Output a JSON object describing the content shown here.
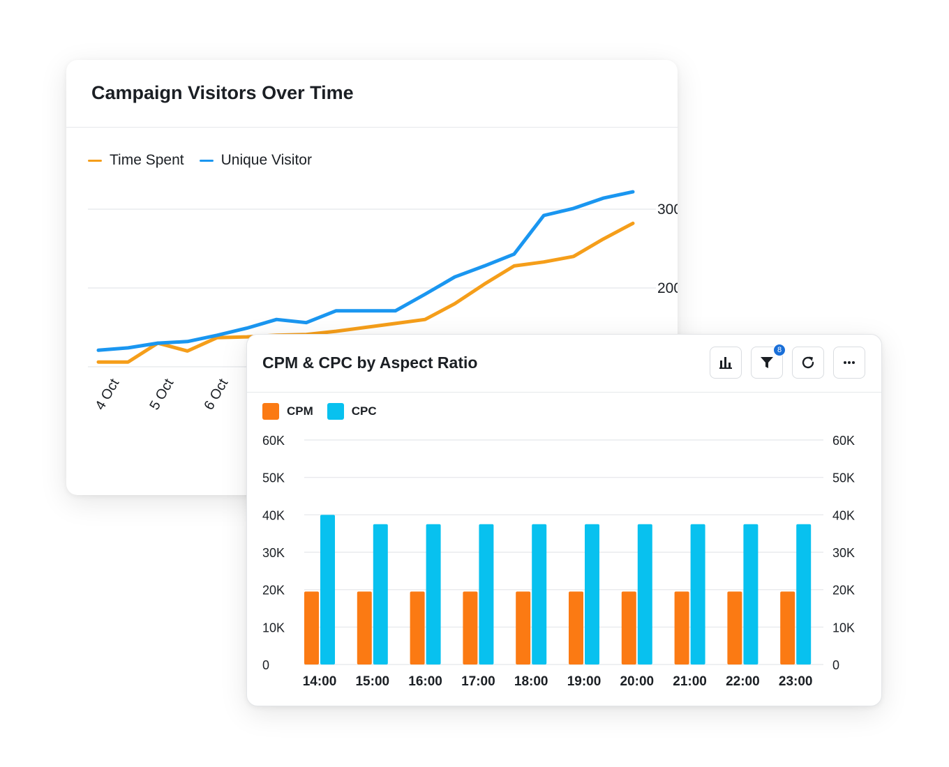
{
  "colors": {
    "time_spent": "#f59e1a",
    "unique_visitor": "#1a96f0",
    "cpm": "#fb7a13",
    "cpc": "#08c1ef",
    "gridline": "#e4e6ea",
    "badge": "#1a6fd8"
  },
  "line_card": {
    "title": "Campaign Visitors Over Time",
    "legend": [
      "Time Spent",
      "Unique Visitor"
    ]
  },
  "bar_card": {
    "title": "CPM & CPC by Aspect Ratio",
    "legend": [
      "CPM",
      "CPC"
    ],
    "toolbar": [
      {
        "icon": "bar-chart-icon"
      },
      {
        "icon": "filter-icon",
        "badge": "8"
      },
      {
        "icon": "refresh-icon"
      },
      {
        "icon": "more-icon"
      }
    ]
  },
  "chart_data": [
    {
      "type": "line",
      "title": "Campaign Visitors Over Time",
      "x_tick_labels": [
        "4 Oct",
        "5 Oct",
        "6 Oct"
      ],
      "y_ticks": [
        200,
        300
      ],
      "y_axis_side": "right",
      "ylim": [
        90,
        310
      ],
      "grid": true,
      "legend_position": "top-left",
      "series": [
        {
          "name": "Time Spent",
          "color": "#f59e1a",
          "values": [
            106,
            106,
            130,
            120,
            137,
            138,
            140,
            141,
            145,
            150,
            155,
            160,
            180,
            205,
            228,
            233,
            240,
            262,
            282
          ]
        },
        {
          "name": "Unique Visitor",
          "color": "#1a96f0",
          "values": [
            121,
            124,
            130,
            132,
            140,
            149,
            160,
            156,
            171,
            171,
            171,
            192,
            214,
            228,
            243,
            292,
            301,
            314,
            322
          ]
        }
      ]
    },
    {
      "type": "bar",
      "title": "CPM & CPC by Aspect Ratio",
      "categories": [
        "14:00",
        "15:00",
        "16:00",
        "17:00",
        "18:00",
        "19:00",
        "20:00",
        "21:00",
        "22:00",
        "23:00"
      ],
      "ylim": [
        0,
        60000
      ],
      "y_tick_labels": [
        "0",
        "10K",
        "20K",
        "30K",
        "40K",
        "50K",
        "60K"
      ],
      "y_ticks": [
        0,
        10000,
        20000,
        30000,
        40000,
        50000,
        60000
      ],
      "grid": true,
      "legend_position": "top-left",
      "series": [
        {
          "name": "CPM",
          "color": "#fb7a13",
          "values": [
            19500,
            19500,
            19500,
            19500,
            19500,
            19500,
            19500,
            19500,
            19500,
            19500
          ]
        },
        {
          "name": "CPC",
          "color": "#08c1ef",
          "values": [
            40000,
            37500,
            37500,
            37500,
            37500,
            37500,
            37500,
            37500,
            37500,
            37500
          ]
        }
      ]
    }
  ]
}
